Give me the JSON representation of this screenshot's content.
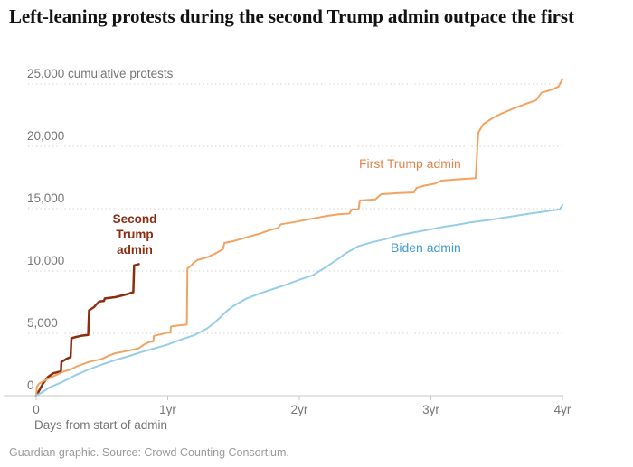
{
  "page": {
    "title": "Left-leaning protests during the second Trump admin outpace the first",
    "x_axis_title": "Days from start of admin",
    "footer": "Guardian graphic. Source: Crowd Counting Consortium."
  },
  "chart_data": {
    "type": "line",
    "title": "Left-leaning protests during the second Trump admin outpace the first",
    "xlabel": "Days from start of admin",
    "ylabel": "cumulative protests",
    "x_unit": "years since start of administration",
    "xlim": [
      0,
      4
    ],
    "ylim": [
      0,
      25000
    ],
    "grid": "horizontal-dotted",
    "legend_position": "inline-labels",
    "x_ticks": [
      {
        "value": 0,
        "label": "0"
      },
      {
        "value": 1,
        "label": "1yr"
      },
      {
        "value": 2,
        "label": "2yr"
      },
      {
        "value": 3,
        "label": "3yr"
      },
      {
        "value": 4,
        "label": "4yr"
      }
    ],
    "y_ticks": [
      {
        "value": 0,
        "label": "0"
      },
      {
        "value": 5000,
        "label": "5,000"
      },
      {
        "value": 10000,
        "label": "10,000"
      },
      {
        "value": 15000,
        "label": "15,000"
      },
      {
        "value": 20000,
        "label": "20,000"
      },
      {
        "value": 25000,
        "label": "25,000 cumulative protests"
      }
    ],
    "colors": {
      "second_trump_line": "#8d2c11",
      "second_trump_label": "#8d2c11",
      "first_trump_line": "#f3a361",
      "first_trump_label": "#e2854c",
      "biden_line": "#95cdeb",
      "biden_label": "#409bd5",
      "gridline": "#d8d8d8",
      "axis": "#c9c9c9",
      "tick_text": "#767676"
    },
    "series": [
      {
        "name": "Second Trump admin",
        "color": "#8d2c11",
        "stroke_width": 2.5,
        "points": [
          [
            0,
            0
          ],
          [
            0.02,
            350
          ],
          [
            0.05,
            950
          ],
          [
            0.09,
            1500
          ],
          [
            0.13,
            1800
          ],
          [
            0.188,
            1950
          ],
          [
            0.192,
            2700
          ],
          [
            0.23,
            2950
          ],
          [
            0.262,
            3100
          ],
          [
            0.268,
            4600
          ],
          [
            0.3,
            4700
          ],
          [
            0.34,
            4800
          ],
          [
            0.395,
            4870
          ],
          [
            0.402,
            6850
          ],
          [
            0.44,
            7100
          ],
          [
            0.46,
            7350
          ],
          [
            0.48,
            7550
          ],
          [
            0.515,
            7600
          ],
          [
            0.522,
            7800
          ],
          [
            0.6,
            7900
          ],
          [
            0.66,
            8050
          ],
          [
            0.71,
            8200
          ],
          [
            0.738,
            8300
          ],
          [
            0.744,
            10450
          ],
          [
            0.78,
            10550
          ]
        ]
      },
      {
        "name": "First Trump admin",
        "color": "#f3a361",
        "stroke_width": 2,
        "points": [
          [
            0,
            0
          ],
          [
            0.005,
            700
          ],
          [
            0.02,
            950
          ],
          [
            0.08,
            1300
          ],
          [
            0.12,
            1500
          ],
          [
            0.2,
            1900
          ],
          [
            0.26,
            2100
          ],
          [
            0.32,
            2400
          ],
          [
            0.4,
            2700
          ],
          [
            0.46,
            2850
          ],
          [
            0.5,
            2950
          ],
          [
            0.55,
            3200
          ],
          [
            0.6,
            3400
          ],
          [
            0.65,
            3500
          ],
          [
            0.72,
            3650
          ],
          [
            0.78,
            3800
          ],
          [
            0.82,
            4100
          ],
          [
            0.86,
            4300
          ],
          [
            0.89,
            4350
          ],
          [
            0.895,
            4800
          ],
          [
            0.96,
            4950
          ],
          [
            1.0,
            5050
          ],
          [
            1.02,
            5050
          ],
          [
            1.025,
            5550
          ],
          [
            1.1,
            5650
          ],
          [
            1.145,
            5700
          ],
          [
            1.15,
            10200
          ],
          [
            1.18,
            10450
          ],
          [
            1.2,
            10700
          ],
          [
            1.23,
            10900
          ],
          [
            1.3,
            11100
          ],
          [
            1.36,
            11400
          ],
          [
            1.42,
            11750
          ],
          [
            1.43,
            12250
          ],
          [
            1.5,
            12400
          ],
          [
            1.6,
            12700
          ],
          [
            1.7,
            13000
          ],
          [
            1.78,
            13300
          ],
          [
            1.84,
            13450
          ],
          [
            1.86,
            13750
          ],
          [
            1.95,
            13900
          ],
          [
            2.0,
            14000
          ],
          [
            2.1,
            14200
          ],
          [
            2.2,
            14400
          ],
          [
            2.3,
            14550
          ],
          [
            2.38,
            14600
          ],
          [
            2.4,
            14950
          ],
          [
            2.45,
            14950
          ],
          [
            2.46,
            15650
          ],
          [
            2.58,
            15750
          ],
          [
            2.62,
            16150
          ],
          [
            2.75,
            16250
          ],
          [
            2.87,
            16300
          ],
          [
            2.89,
            16650
          ],
          [
            2.95,
            16850
          ],
          [
            3.03,
            17000
          ],
          [
            3.08,
            17250
          ],
          [
            3.2,
            17350
          ],
          [
            3.34,
            17450
          ],
          [
            3.36,
            21100
          ],
          [
            3.4,
            21800
          ],
          [
            3.46,
            22200
          ],
          [
            3.52,
            22550
          ],
          [
            3.62,
            23000
          ],
          [
            3.72,
            23400
          ],
          [
            3.8,
            23700
          ],
          [
            3.84,
            24300
          ],
          [
            3.92,
            24550
          ],
          [
            3.97,
            24800
          ],
          [
            4.0,
            25400
          ]
        ]
      },
      {
        "name": "Biden admin",
        "color": "#95cdeb",
        "stroke_width": 2,
        "points": [
          [
            0,
            0
          ],
          [
            0.05,
            300
          ],
          [
            0.1,
            650
          ],
          [
            0.2,
            1100
          ],
          [
            0.3,
            1650
          ],
          [
            0.4,
            2100
          ],
          [
            0.5,
            2500
          ],
          [
            0.6,
            2850
          ],
          [
            0.7,
            3150
          ],
          [
            0.8,
            3500
          ],
          [
            0.9,
            3800
          ],
          [
            1.0,
            4100
          ],
          [
            1.1,
            4500
          ],
          [
            1.2,
            4850
          ],
          [
            1.3,
            5400
          ],
          [
            1.35,
            5800
          ],
          [
            1.4,
            6300
          ],
          [
            1.45,
            6800
          ],
          [
            1.5,
            7200
          ],
          [
            1.55,
            7500
          ],
          [
            1.6,
            7800
          ],
          [
            1.7,
            8200
          ],
          [
            1.8,
            8550
          ],
          [
            1.9,
            8900
          ],
          [
            2.0,
            9300
          ],
          [
            2.1,
            9650
          ],
          [
            2.2,
            10300
          ],
          [
            2.3,
            11000
          ],
          [
            2.35,
            11400
          ],
          [
            2.45,
            12000
          ],
          [
            2.55,
            12300
          ],
          [
            2.65,
            12550
          ],
          [
            2.75,
            12850
          ],
          [
            2.85,
            13050
          ],
          [
            2.95,
            13250
          ],
          [
            3.1,
            13550
          ],
          [
            3.2,
            13700
          ],
          [
            3.3,
            13900
          ],
          [
            3.45,
            14100
          ],
          [
            3.6,
            14350
          ],
          [
            3.75,
            14600
          ],
          [
            3.85,
            14750
          ],
          [
            3.95,
            14900
          ],
          [
            3.98,
            14950
          ],
          [
            4.0,
            15300
          ]
        ]
      }
    ]
  }
}
